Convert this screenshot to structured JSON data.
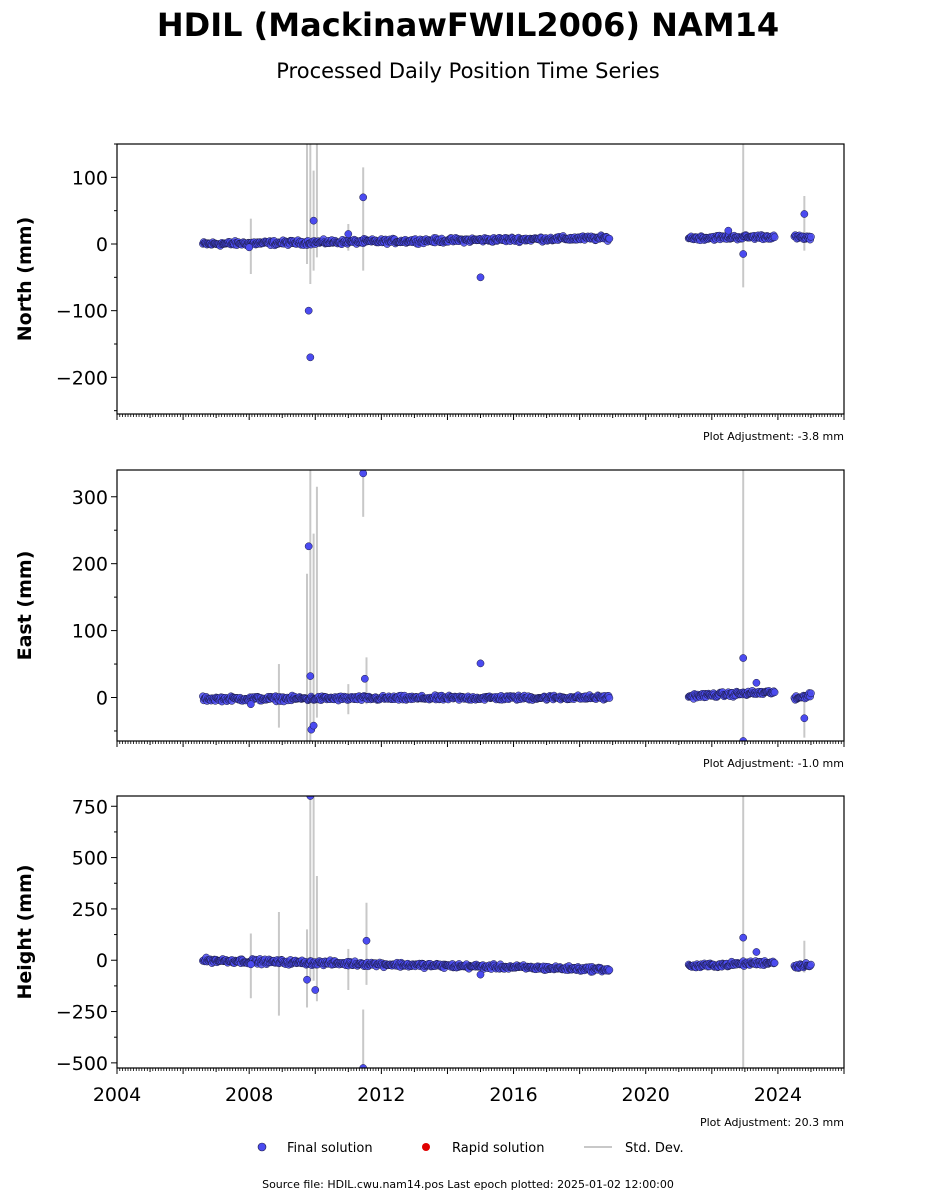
{
  "title": "HDIL (MackinawFWIL2006) NAM14",
  "subtitle": "Processed Daily Position Time Series",
  "legend": {
    "final": "Final solution",
    "rapid": "Rapid solution",
    "std": "Std. Dev."
  },
  "footer": "Source file: HDIL.cwu.nam14.pos  Last epoch plotted: 2025-01-02 12:00:00",
  "colors": {
    "final": "#4b4bf0",
    "final_edge": "#1a1a40",
    "rapid": "#e00000",
    "std": "#c8c8c8"
  },
  "chart_data": [
    {
      "type": "scatter",
      "ylabel": "North (mm)",
      "adjustment": "Plot Adjustment: -3.8 mm",
      "xlim": [
        2004,
        2026
      ],
      "ylim": [
        -255,
        150
      ],
      "yticks": [
        100,
        0,
        -100,
        -200
      ],
      "ytick_labels": [
        "100",
        "0",
        "−100",
        "−200"
      ],
      "segments": [
        {
          "x0": 2006.6,
          "x1": 2018.9,
          "a": 0,
          "b": 9
        },
        {
          "x0": 2021.3,
          "x1": 2023.9,
          "a": 9,
          "b": 11
        },
        {
          "x0": 2024.5,
          "x1": 2025.0,
          "a": 10,
          "b": 9
        }
      ],
      "outliers": [
        [
          2009.8,
          -100
        ],
        [
          2009.85,
          -170
        ],
        [
          2009.95,
          35
        ],
        [
          2011.45,
          70
        ],
        [
          2015.0,
          -50
        ],
        [
          2011.0,
          15
        ],
        [
          2022.5,
          20
        ],
        [
          2022.95,
          -15
        ],
        [
          2024.8,
          45
        ],
        [
          2008.0,
          -5
        ]
      ],
      "errorbars": [
        [
          2009.75,
          -30,
          150
        ],
        [
          2009.85,
          -60,
          150
        ],
        [
          2009.95,
          -40,
          110
        ],
        [
          2010.05,
          -20,
          150
        ],
        [
          2011.45,
          -40,
          115
        ],
        [
          2008.05,
          -45,
          38
        ],
        [
          2011.0,
          -10,
          30
        ],
        [
          2022.95,
          -65,
          150
        ],
        [
          2024.8,
          -10,
          72
        ]
      ]
    },
    {
      "type": "scatter",
      "ylabel": "East (mm)",
      "adjustment": "Plot Adjustment: -1.0 mm",
      "xlim": [
        2004,
        2026
      ],
      "ylim": [
        -65,
        340
      ],
      "yticks": [
        300,
        200,
        100,
        0
      ],
      "ytick_labels": [
        "300",
        "200",
        "100",
        "0"
      ],
      "segments": [
        {
          "x0": 2006.6,
          "x1": 2018.9,
          "a": -2,
          "b": 0
        },
        {
          "x0": 2021.3,
          "x1": 2023.9,
          "a": 2,
          "b": 8
        },
        {
          "x0": 2024.5,
          "x1": 2025.0,
          "a": -3,
          "b": 5
        }
      ],
      "outliers": [
        [
          2009.8,
          226
        ],
        [
          2009.85,
          32
        ],
        [
          2009.88,
          -48
        ],
        [
          2009.95,
          -42
        ],
        [
          2011.45,
          335
        ],
        [
          2011.5,
          28
        ],
        [
          2015.0,
          51
        ],
        [
          2008.05,
          -10
        ],
        [
          2022.95,
          59
        ],
        [
          2022.95,
          -65
        ],
        [
          2024.8,
          -31
        ],
        [
          2023.35,
          22
        ]
      ],
      "errorbars": [
        [
          2009.75,
          -65,
          185
        ],
        [
          2009.85,
          -65,
          340
        ],
        [
          2009.95,
          -50,
          245
        ],
        [
          2010.05,
          -30,
          315
        ],
        [
          2011.45,
          270,
          340
        ],
        [
          2008.9,
          -45,
          50
        ],
        [
          2022.95,
          -65,
          340
        ],
        [
          2011.0,
          -25,
          20
        ],
        [
          2011.55,
          -10,
          60
        ],
        [
          2024.8,
          -60,
          5
        ]
      ]
    },
    {
      "type": "scatter",
      "ylabel": "Height (mm)",
      "adjustment": "Plot Adjustment: 20.3 mm",
      "xlim": [
        2004,
        2026
      ],
      "ylim": [
        -525,
        800
      ],
      "yticks": [
        750,
        500,
        250,
        0,
        -250,
        -500
      ],
      "ytick_labels": [
        "750",
        "500",
        "250",
        "0",
        "−250",
        "−500"
      ],
      "xticks": [
        2004,
        2008,
        2012,
        2016,
        2020,
        2024
      ],
      "xtick_labels": [
        "2004",
        "2008",
        "2012",
        "2016",
        "2020",
        "2024"
      ],
      "segments": [
        {
          "x0": 2006.6,
          "x1": 2018.9,
          "a": 0,
          "b": -45
        },
        {
          "x0": 2021.3,
          "x1": 2023.9,
          "a": -30,
          "b": -10
        },
        {
          "x0": 2024.5,
          "x1": 2025.0,
          "a": -30,
          "b": -20
        }
      ],
      "outliers": [
        [
          2009.85,
          800
        ],
        [
          2010.0,
          -145
        ],
        [
          2011.55,
          95
        ],
        [
          2011.45,
          -525
        ],
        [
          2009.75,
          -95
        ],
        [
          2022.95,
          110
        ],
        [
          2008.05,
          -20
        ],
        [
          2015.0,
          -70
        ],
        [
          2023.35,
          40
        ]
      ],
      "errorbars": [
        [
          2008.05,
          -185,
          130
        ],
        [
          2008.9,
          -270,
          235
        ],
        [
          2009.75,
          -230,
          150
        ],
        [
          2009.85,
          -100,
          800
        ],
        [
          2009.95,
          -100,
          800
        ],
        [
          2010.05,
          -200,
          410
        ],
        [
          2011.0,
          -145,
          55
        ],
        [
          2011.45,
          -525,
          -240
        ],
        [
          2011.55,
          -120,
          280
        ],
        [
          2022.95,
          -525,
          800
        ],
        [
          2024.8,
          -60,
          95
        ]
      ]
    }
  ]
}
